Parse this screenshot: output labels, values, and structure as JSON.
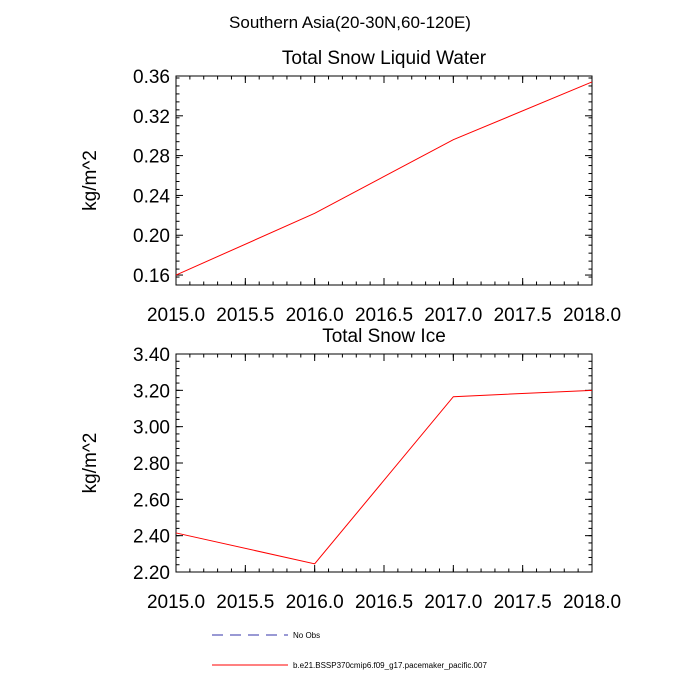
{
  "figure": {
    "suptitle": "Southern Asia(20-30N,60-120E)"
  },
  "colors": {
    "axes": "#000000",
    "model_line": "#ff0000",
    "obs_line": "#3333aa",
    "background": "#ffffff"
  },
  "legend": {
    "placement": "bottom",
    "entries": [
      {
        "label": "No Obs",
        "color": "#3333aa",
        "style": "dashed"
      },
      {
        "label": "b.e21.BSSP370cmip6.f09_g17.pacemaker_pacific.007",
        "color": "#ff0000",
        "style": "solid"
      }
    ]
  },
  "chart_data": [
    {
      "type": "line",
      "title": "Total Snow Liquid Water",
      "xlabel": "",
      "ylabel": "kg/m^2",
      "xlim": [
        2015.0,
        2018.0
      ],
      "ylim": [
        0.15,
        0.36
      ],
      "xticks": [
        2015.0,
        2015.5,
        2016.0,
        2016.5,
        2017.0,
        2017.5,
        2018.0
      ],
      "xtick_labels": [
        "2015.0",
        "2015.5",
        "2016.0",
        "2016.5",
        "2017.0",
        "2017.5",
        "2018.0"
      ],
      "yticks": [
        0.16,
        0.2,
        0.24,
        0.28,
        0.32,
        0.36
      ],
      "ytick_labels": [
        "0.16",
        "0.20",
        "0.24",
        "0.28",
        "0.32",
        "0.36"
      ],
      "grid": false,
      "series": [
        {
          "name": "b.e21.BSSP370cmip6.f09_g17.pacemaker_pacific.007",
          "color": "#ff0000",
          "x": [
            2015.0,
            2016.0,
            2017.0,
            2018.0
          ],
          "y": [
            0.16,
            0.222,
            0.296,
            0.354
          ]
        }
      ]
    },
    {
      "type": "line",
      "title": "Total Snow Ice",
      "xlabel": "",
      "ylabel": "kg/m^2",
      "xlim": [
        2015.0,
        2018.0
      ],
      "ylim": [
        2.2,
        3.4
      ],
      "xticks": [
        2015.0,
        2015.5,
        2016.0,
        2016.5,
        2017.0,
        2017.5,
        2018.0
      ],
      "xtick_labels": [
        "2015.0",
        "2015.5",
        "2016.0",
        "2016.5",
        "2017.0",
        "2017.5",
        "2018.0"
      ],
      "yticks": [
        2.2,
        2.4,
        2.6,
        2.8,
        3.0,
        3.2,
        3.4
      ],
      "ytick_labels": [
        "2.20",
        "2.40",
        "2.60",
        "2.80",
        "3.00",
        "3.20",
        "3.40"
      ],
      "grid": false,
      "series": [
        {
          "name": "b.e21.BSSP370cmip6.f09_g17.pacemaker_pacific.007",
          "color": "#ff0000",
          "x": [
            2015.0,
            2016.0,
            2017.0,
            2018.0
          ],
          "y": [
            2.415,
            2.245,
            3.165,
            3.2
          ]
        }
      ]
    }
  ]
}
